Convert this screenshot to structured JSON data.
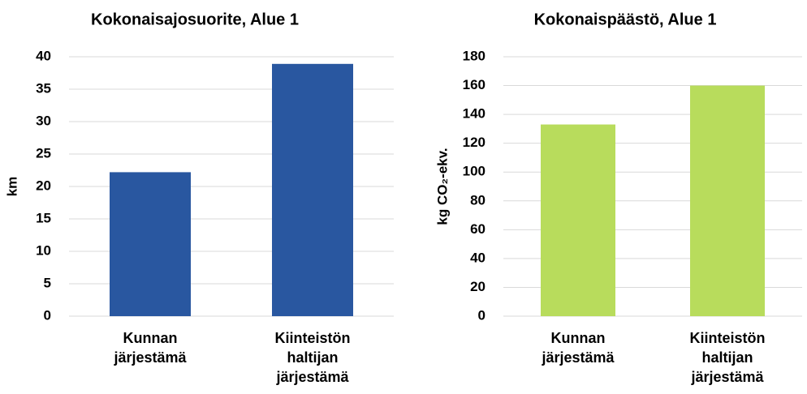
{
  "chart_data": [
    {
      "type": "bar",
      "title": "Kokonaisajosuorite, Alue 1",
      "y_label": "km",
      "categories": [
        [
          "Kunnan",
          "järjestämä"
        ],
        [
          "Kiinteistön",
          "haltijan",
          "järjestämä"
        ]
      ],
      "values": [
        22.2,
        38.9
      ],
      "color": "#2957a0",
      "ylim": [
        0,
        40
      ],
      "yticks": [
        0,
        5,
        10,
        15,
        20,
        25,
        30,
        35,
        40
      ],
      "grid": true
    },
    {
      "type": "bar",
      "title": "Kokonaispäästö, Alue 1",
      "y_label": "kg CO₂-ekv.",
      "categories": [
        [
          "Kunnan",
          "järjestämä"
        ],
        [
          "Kiinteistön",
          "haltijan",
          "järjestämä"
        ]
      ],
      "values": [
        133,
        160
      ],
      "color": "#b8dc5c",
      "ylim": [
        0,
        180
      ],
      "yticks": [
        0,
        20,
        40,
        60,
        80,
        100,
        120,
        140,
        160,
        180
      ],
      "grid": true
    }
  ]
}
